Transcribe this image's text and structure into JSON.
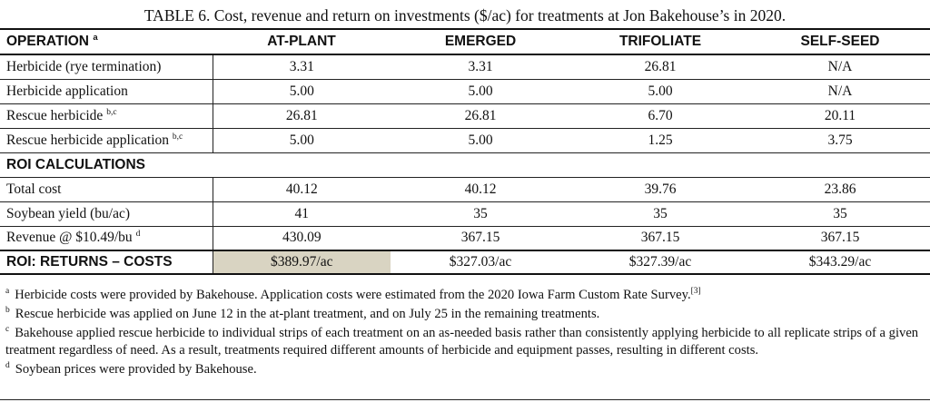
{
  "caption": "TABLE 6. Cost, revenue and return on investments ($/ac) for treatments at Jon Bakehouse’s in 2020.",
  "header": {
    "operation": "OPERATION",
    "operation_sup": "a",
    "columns": [
      "AT-PLANT",
      "EMERGED",
      "TRIFOLIATE",
      "SELF-SEED"
    ]
  },
  "rows": [
    {
      "label": "Herbicide (rye termination)",
      "sup": "",
      "values": [
        "3.31",
        "3.31",
        "26.81",
        "N/A"
      ]
    },
    {
      "label": "Herbicide application",
      "sup": "",
      "values": [
        "5.00",
        "5.00",
        "5.00",
        "N/A"
      ]
    },
    {
      "label": "Rescue herbicide",
      "sup": "b,c",
      "values": [
        "26.81",
        "26.81",
        "6.70",
        "20.11"
      ]
    },
    {
      "label": "Rescue herbicide application",
      "sup": "b,c",
      "values": [
        "5.00",
        "5.00",
        "1.25",
        "3.75"
      ]
    }
  ],
  "roi_section": "ROI CALCULATIONS",
  "roi_rows": [
    {
      "label": "Total cost",
      "sup": "",
      "values": [
        "40.12",
        "40.12",
        "39.76",
        "23.86"
      ]
    },
    {
      "label": "Soybean yield (bu/ac)",
      "sup": "",
      "values": [
        "41",
        "35",
        "35",
        "35"
      ]
    },
    {
      "label": "Revenue @ $10.49/bu",
      "sup": "d",
      "values": [
        "430.09",
        "367.15",
        "367.15",
        "367.15"
      ]
    }
  ],
  "final_row": {
    "label": "ROI: RETURNS – COSTS",
    "values": [
      "$389.97/ac",
      "$327.03/ac",
      "$327.39/ac",
      "$343.29/ac"
    ],
    "highlight_color": "#d9d4c2"
  },
  "footnotes": [
    {
      "mark": "a",
      "text": "Herbicide costs were provided by Bakehouse. Application costs were estimated from the 2020 Iowa Farm Custom Rate Survey.",
      "ref": "[3]"
    },
    {
      "mark": "b",
      "text": "Rescue herbicide was applied on June 12 in the at-plant treatment, and on July 25 in the remaining treatments.",
      "ref": ""
    },
    {
      "mark": "c",
      "text": "Bakehouse applied rescue herbicide to individual strips of each treatment on an as-needed basis rather than consistently applying herbicide to all replicate strips of a given treatment regardless of need. As a result, treatments required different amounts of herbicide and equipment passes, resulting in different costs.",
      "ref": ""
    },
    {
      "mark": "d",
      "text": "Soybean prices were provided by Bakehouse.",
      "ref": ""
    }
  ]
}
